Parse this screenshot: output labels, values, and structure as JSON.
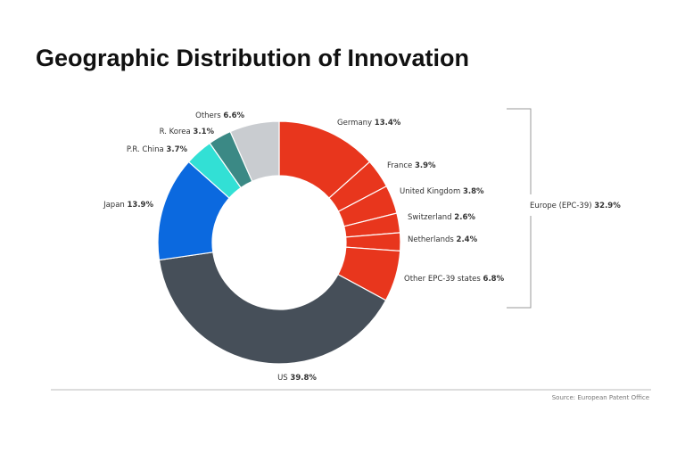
{
  "chart_data": {
    "type": "donut",
    "title": "Geographic Distribution of Innovation",
    "categories": [
      "Germany",
      "France",
      "United Kingdom",
      "Switzerland",
      "Netherlands",
      "Other EPC-39 states",
      "US",
      "Japan",
      "P.R. China",
      "R. Korea",
      "Others"
    ],
    "values": [
      13.4,
      3.9,
      3.8,
      2.6,
      2.4,
      6.8,
      39.8,
      13.9,
      3.7,
      3.1,
      6.6
    ],
    "value_labels": [
      "13.4%",
      "3.9%",
      "3.8%",
      "2.6%",
      "2.4%",
      "6.8%",
      "39.8%",
      "13.9%",
      "3.7%",
      "3.1%",
      "6.6%"
    ],
    "colors": [
      "#e8361d",
      "#e8361d",
      "#e8361d",
      "#e8361d",
      "#e8361d",
      "#e8361d",
      "#464f59",
      "#0b69df",
      "#32e0d5",
      "#3b8985",
      "#c9ccd0"
    ],
    "group": {
      "label": "Europe (EPC-39)",
      "value": 32.9,
      "value_label": "32.9%"
    },
    "source": "Source: European Patent Office"
  }
}
